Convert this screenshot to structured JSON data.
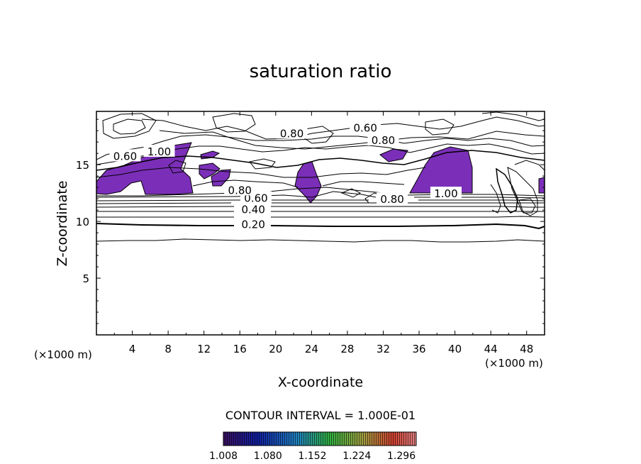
{
  "chart_data": {
    "type": "contour",
    "title": "saturation ratio",
    "xlabel": "X-coordinate",
    "ylabel": "Z-coordinate",
    "x_unit": "(×1000 m)",
    "z_unit": "(×1000 m)",
    "xlim": [
      0,
      50
    ],
    "ylim": [
      0,
      19.7
    ],
    "x_ticks": [
      4,
      8,
      12,
      16,
      20,
      24,
      28,
      32,
      36,
      40,
      44,
      48
    ],
    "y_ticks": [
      5,
      10,
      15
    ],
    "contour_interval_text": "CONTOUR INTERVAL = 1.000E-01",
    "contour_labels": [
      {
        "text": "0.20",
        "x": 17.5,
        "z": 9.8
      },
      {
        "text": "0.40",
        "x": 17.5,
        "z": 11.1
      },
      {
        "text": "0.60",
        "x": 17.8,
        "z": 12.1
      },
      {
        "text": "0.80",
        "x": 16.0,
        "z": 12.8
      },
      {
        "text": "0.80",
        "x": 33.0,
        "z": 12.0
      },
      {
        "text": "1.00",
        "x": 39.0,
        "z": 12.5
      },
      {
        "text": "0.60",
        "x": 3.2,
        "z": 15.8
      },
      {
        "text": "1.00",
        "x": 7.0,
        "z": 16.2
      },
      {
        "text": "0.80",
        "x": 21.8,
        "z": 17.8
      },
      {
        "text": "0.60",
        "x": 30.0,
        "z": 18.3
      },
      {
        "text": "0.80",
        "x": 32.0,
        "z": 17.2
      }
    ],
    "colorbar": {
      "labels": [
        "1.008",
        "1.080",
        "1.152",
        "1.224",
        "1.296"
      ],
      "min": 1.008,
      "max": 1.32
    },
    "shaded_regions_x": [
      [
        0.5,
        11
      ],
      [
        11.5,
        15.5
      ],
      [
        22.5,
        25
      ],
      [
        35,
        42
      ],
      [
        49,
        50
      ]
    ]
  },
  "colors": {
    "supersaturated_fill": "#7b2fb8",
    "line": "#000000"
  }
}
